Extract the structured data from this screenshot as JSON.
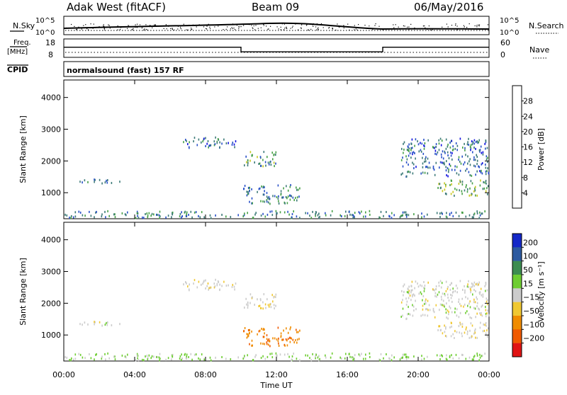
{
  "header": {
    "station": "Adak West (fitACF)",
    "beam": "Beam 09",
    "date": "06/May/2016"
  },
  "sky_panel": {
    "left_label": "N.Sky",
    "right_label": "N.Search",
    "left_top_tick": "10^5",
    "left_bottom_tick": "10^0",
    "right_top_tick": "10^5",
    "right_bottom_tick": "10^0"
  },
  "freq_panel": {
    "left_label_1": "Freq.",
    "left_label_2": "[MHz]",
    "right_label": "Nave",
    "left_top_tick": "18",
    "left_bottom_tick": "8",
    "right_top_tick": "60",
    "right_bottom_tick": "0",
    "freq_steps": [
      {
        "x": 0.0,
        "freq": 13.5
      },
      {
        "x": 10.0,
        "freq": 11.0
      },
      {
        "x": 18.0,
        "freq": 13.5
      },
      {
        "x": 24.0,
        "freq": 13.5
      }
    ]
  },
  "cpid": {
    "label": "CPID",
    "program": "normalsound (fast) 157 RF"
  },
  "power_colorbar": {
    "title": "Power [dB]",
    "ticks": [
      "4",
      "8",
      "12",
      "16",
      "20",
      "24",
      "28"
    ],
    "colors": [
      "#1010e0",
      "#2850c8",
      "#3c7a78",
      "#46a046",
      "#c8c820",
      "#f0a000",
      "#f06000",
      "#e01010"
    ]
  },
  "velocity_colorbar": {
    "title": "Velocity [m s⁻¹]",
    "ticks": [
      "200",
      "100",
      "50",
      "15",
      "−15",
      "−50",
      "−100",
      "−200"
    ],
    "colors": [
      "#1428c8",
      "#2d5aa0",
      "#3c8c50",
      "#6ecd32",
      "#cccccc",
      "#f0c832",
      "#f08c00",
      "#f05a00",
      "#e01414"
    ]
  },
  "axes": {
    "ylabel": "Slant Range [km]",
    "yticks": [
      "1000",
      "2000",
      "3000",
      "4000"
    ],
    "xticks": [
      "00:00",
      "04:00",
      "08:00",
      "12:00",
      "16:00",
      "20:00",
      "00:00"
    ],
    "xlabel": "Time UT"
  },
  "chart_data": {
    "type": "heatmap",
    "x_units": "hours UT",
    "y_units": "km",
    "xlim": [
      0,
      24
    ],
    "ylim": [
      180,
      4550
    ],
    "echo_regions": [
      {
        "t0": 0.6,
        "t1": 3.2,
        "r0": 1280,
        "r1": 1420,
        "power": 8,
        "velocity": 0
      },
      {
        "t0": 0.0,
        "t1": 24.0,
        "r0": 200,
        "r1": 420,
        "power": 10,
        "velocity": 20
      },
      {
        "t0": 6.7,
        "t1": 9.8,
        "r0": 2400,
        "r1": 2750,
        "power": 8,
        "velocity": -5
      },
      {
        "t0": 10.0,
        "t1": 12.0,
        "r0": 1800,
        "r1": 2300,
        "power": 12,
        "velocity": -10
      },
      {
        "t0": 10.0,
        "t1": 13.3,
        "r0": 650,
        "r1": 1250,
        "power": 10,
        "velocity": -90
      },
      {
        "t0": 21.0,
        "t1": 24.0,
        "r0": 900,
        "r1": 1400,
        "power": 14,
        "velocity": -5
      },
      {
        "t0": 19.0,
        "t1": 24.0,
        "r0": 1500,
        "r1": 2700,
        "power": 8,
        "velocity": 0
      }
    ]
  }
}
